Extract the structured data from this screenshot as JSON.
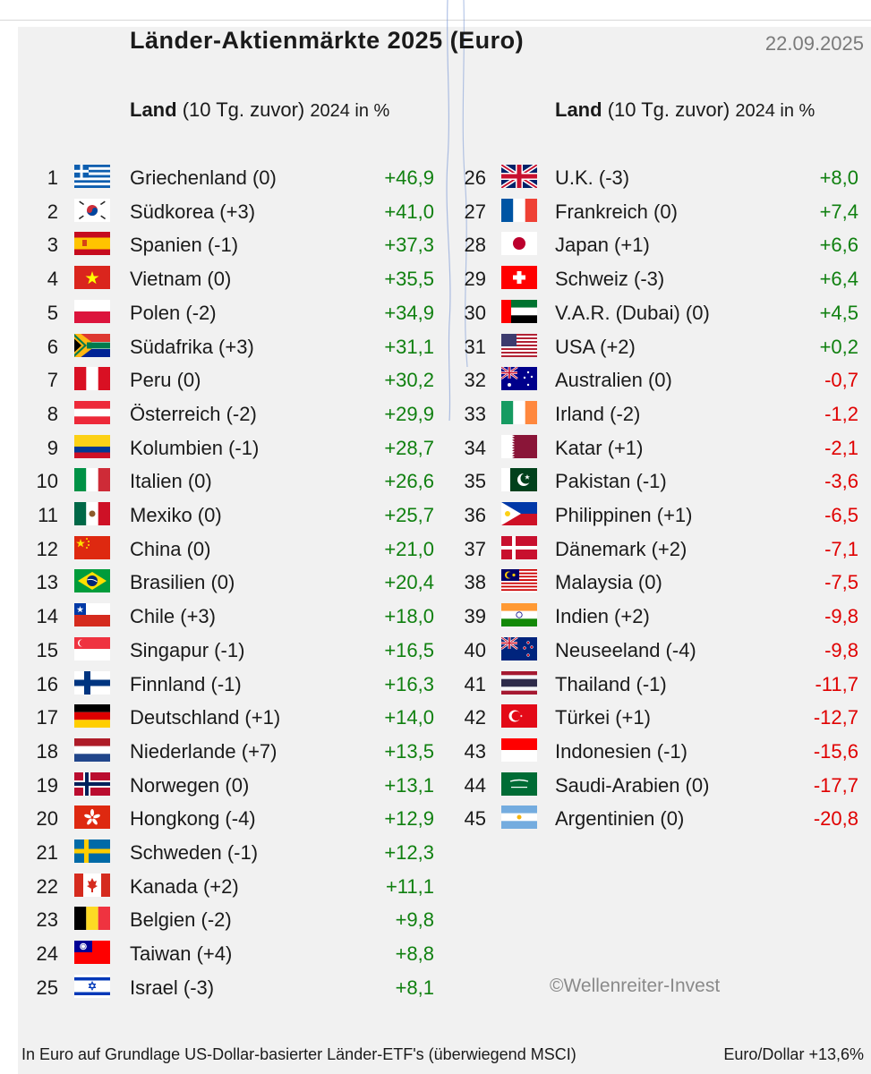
{
  "title": "Länder-Aktienmärkte 2025 (Euro)",
  "date": "22.09.2025",
  "header": {
    "land": "Land",
    "prior": "(10 Tg. zuvor)",
    "year_pct": "2024 in %"
  },
  "colors": {
    "positive": "#108010",
    "negative": "#e00000"
  },
  "rows": [
    {
      "rank": "1",
      "country": "Griechenland (0)",
      "value": "+46,9",
      "flag": "gr"
    },
    {
      "rank": "2",
      "country": "Südkorea (+3)",
      "value": "+41,0",
      "flag": "kr"
    },
    {
      "rank": "3",
      "country": "Spanien (-1)",
      "value": "+37,3",
      "flag": "es"
    },
    {
      "rank": "4",
      "country": "Vietnam (0)",
      "value": "+35,5",
      "flag": "vn"
    },
    {
      "rank": "5",
      "country": "Polen (-2)",
      "value": "+34,9",
      "flag": "pl"
    },
    {
      "rank": "6",
      "country": "Südafrika (+3)",
      "value": "+31,1",
      "flag": "za"
    },
    {
      "rank": "7",
      "country": "Peru (0)",
      "value": "+30,2",
      "flag": "pe"
    },
    {
      "rank": "8",
      "country": "Österreich (-2)",
      "value": "+29,9",
      "flag": "at"
    },
    {
      "rank": "9",
      "country": "Kolumbien (-1)",
      "value": "+28,7",
      "flag": "co"
    },
    {
      "rank": "10",
      "country": "Italien (0)",
      "value": "+26,6",
      "flag": "it"
    },
    {
      "rank": "11",
      "country": "Mexiko (0)",
      "value": "+25,7",
      "flag": "mx"
    },
    {
      "rank": "12",
      "country": "China (0)",
      "value": "+21,0",
      "flag": "cn"
    },
    {
      "rank": "13",
      "country": "Brasilien (0)",
      "value": "+20,4",
      "flag": "br"
    },
    {
      "rank": "14",
      "country": "Chile (+3)",
      "value": "+18,0",
      "flag": "cl"
    },
    {
      "rank": "15",
      "country": "Singapur (-1)",
      "value": "+16,5",
      "flag": "sg"
    },
    {
      "rank": "16",
      "country": "Finnland (-1)",
      "value": "+16,3",
      "flag": "fi"
    },
    {
      "rank": "17",
      "country": "Deutschland (+1)",
      "value": "+14,0",
      "flag": "de"
    },
    {
      "rank": "18",
      "country": "Niederlande (+7)",
      "value": "+13,5",
      "flag": "nl"
    },
    {
      "rank": "19",
      "country": "Norwegen (0)",
      "value": "+13,1",
      "flag": "no"
    },
    {
      "rank": "20",
      "country": "Hongkong (-4)",
      "value": "+12,9",
      "flag": "hk"
    },
    {
      "rank": "21",
      "country": "Schweden (-1)",
      "value": "+12,3",
      "flag": "se"
    },
    {
      "rank": "22",
      "country": "Kanada (+2)",
      "value": "+11,1",
      "flag": "ca"
    },
    {
      "rank": "23",
      "country": "Belgien (-2)",
      "value": "+9,8",
      "flag": "be"
    },
    {
      "rank": "24",
      "country": "Taiwan (+4)",
      "value": "+8,8",
      "flag": "tw"
    },
    {
      "rank": "25",
      "country": "Israel (-3)",
      "value": "+8,1",
      "flag": "il"
    },
    {
      "rank": "26",
      "country": "U.K. (-3)",
      "value": "+8,0",
      "flag": "gb"
    },
    {
      "rank": "27",
      "country": "Frankreich (0)",
      "value": "+7,4",
      "flag": "fr"
    },
    {
      "rank": "28",
      "country": "Japan (+1)",
      "value": "+6,6",
      "flag": "jp"
    },
    {
      "rank": "29",
      "country": "Schweiz (-3)",
      "value": "+6,4",
      "flag": "ch"
    },
    {
      "rank": "30",
      "country": "V.A.R. (Dubai) (0)",
      "value": "+4,5",
      "flag": "ae"
    },
    {
      "rank": "31",
      "country": "USA (+2)",
      "value": "+0,2",
      "flag": "us"
    },
    {
      "rank": "32",
      "country": "Australien (0)",
      "value": "-0,7",
      "flag": "au"
    },
    {
      "rank": "33",
      "country": "Irland (-2)",
      "value": "-1,2",
      "flag": "ie"
    },
    {
      "rank": "34",
      "country": "Katar (+1)",
      "value": "-2,1",
      "flag": "qa"
    },
    {
      "rank": "35",
      "country": "Pakistan (-1)",
      "value": "-3,6",
      "flag": "pk"
    },
    {
      "rank": "36",
      "country": "Philippinen (+1)",
      "value": "-6,5",
      "flag": "ph"
    },
    {
      "rank": "37",
      "country": "Dänemark (+2)",
      "value": "-7,1",
      "flag": "dk"
    },
    {
      "rank": "38",
      "country": "Malaysia (0)",
      "value": "-7,5",
      "flag": "my"
    },
    {
      "rank": "39",
      "country": "Indien (+2)",
      "value": "-9,8",
      "flag": "in"
    },
    {
      "rank": "40",
      "country": "Neuseeland (-4)",
      "value": "-9,8",
      "flag": "nz"
    },
    {
      "rank": "41",
      "country": "Thailand (-1)",
      "value": "-11,7",
      "flag": "th"
    },
    {
      "rank": "42",
      "country": "Türkei (+1)",
      "value": "-12,7",
      "flag": "tr"
    },
    {
      "rank": "43",
      "country": "Indonesien (-1)",
      "value": "-15,6",
      "flag": "id"
    },
    {
      "rank": "44",
      "country": "Saudi-Arabien (0)",
      "value": "-17,7",
      "flag": "sa"
    },
    {
      "rank": "45",
      "country": "Argentinien (0)",
      "value": "-20,8",
      "flag": "ar"
    }
  ],
  "copyright": "©Wellenreiter-Invest",
  "footer": {
    "left": "In Euro auf Grundlage US-Dollar-basierter Länder-ETF's (überwiegend MSCI)",
    "right": "Euro/Dollar +13,6%"
  }
}
